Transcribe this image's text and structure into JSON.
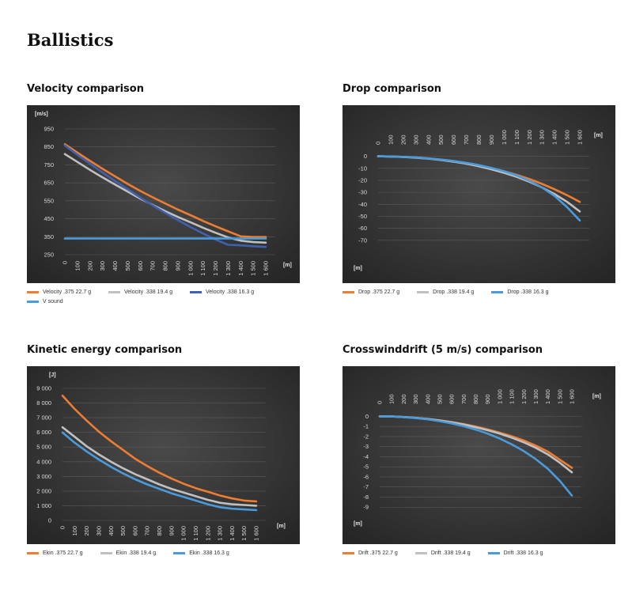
{
  "page": {
    "title": "Ballistics"
  },
  "colors": {
    "orange": "#ED7D31",
    "gray": "#C0C0C0",
    "navy": "#4060B0",
    "blue": "#4A9BDC",
    "bg": "#333333"
  },
  "chart_data": [
    {
      "id": "velocity",
      "type": "line",
      "title": "Velocity comparison",
      "x_unit": "[m]",
      "y_unit": "[m/s]",
      "x": [
        0,
        100,
        200,
        300,
        400,
        500,
        600,
        700,
        800,
        900,
        1000,
        1100,
        1200,
        1300,
        1400,
        1500,
        1600
      ],
      "x_tick_labels": [
        "0",
        "100",
        "200",
        "300",
        "400",
        "500",
        "600",
        "700",
        "800",
        "900",
        "1 000",
        "1 100",
        "1 200",
        "1 300",
        "1 400",
        "1 500",
        "1 600"
      ],
      "y_ticks": [
        250,
        350,
        450,
        550,
        650,
        750,
        850,
        950
      ],
      "y_tick_labels": [
        "250",
        "350",
        "450",
        "550",
        "650",
        "750",
        "850",
        "950"
      ],
      "ylim": [
        250,
        950
      ],
      "grid": true,
      "legend_position": "bottom",
      "legend_columns": 2,
      "series": [
        {
          "name": "Velocity .375 22.7 g",
          "color": "#ED7D31",
          "values": [
            865,
            818,
            772,
            728,
            686,
            644,
            605,
            569,
            535,
            501,
            470,
            438,
            408,
            380,
            352,
            348,
            348
          ]
        },
        {
          "name": "Velocity .338 19.4 g",
          "color": "#C0C0C0",
          "values": [
            810,
            766,
            722,
            680,
            640,
            601,
            562,
            527,
            492,
            460,
            430,
            400,
            372,
            346,
            328,
            320,
            317
          ]
        },
        {
          "name": "Velocity .338 16.3 g",
          "color": "#4060B0",
          "values": [
            858,
            806,
            756,
            708,
            660,
            614,
            568,
            524,
            482,
            442,
            404,
            368,
            334,
            305,
            302,
            297,
            293
          ]
        },
        {
          "name": "V sound",
          "color": "#4A9BDC",
          "values": [
            340,
            340,
            340,
            340,
            340,
            340,
            340,
            340,
            340,
            340,
            340,
            340,
            340,
            340,
            340,
            340,
            340
          ]
        }
      ]
    },
    {
      "id": "drop",
      "type": "line",
      "title": "Drop comparison",
      "x_unit": "[m]",
      "y_unit": "[m]",
      "x": [
        0,
        100,
        200,
        300,
        400,
        500,
        600,
        700,
        800,
        900,
        1000,
        1100,
        1200,
        1300,
        1400,
        1500,
        1600
      ],
      "x_tick_labels": [
        "0",
        "100",
        "200",
        "300",
        "400",
        "500",
        "600",
        "700",
        "800",
        "900",
        "1 000",
        "1 100",
        "1 200",
        "1 300",
        "1 400",
        "1 500",
        "1 600"
      ],
      "y_ticks": [
        0,
        -10,
        -20,
        -30,
        -40,
        -50,
        -60,
        -70
      ],
      "y_tick_labels": [
        "0",
        "-10",
        "-20",
        "-30",
        "-40",
        "-50",
        "-60",
        "-70"
      ],
      "ylim": [
        -80,
        5
      ],
      "grid": true,
      "x_axis_position": "top",
      "legend_position": "bottom",
      "legend_columns": 3,
      "series": [
        {
          "name": "Drop .375 22.7 g",
          "color": "#ED7D31",
          "values": [
            0,
            -0.2,
            -0.5,
            -1,
            -1.8,
            -2.8,
            -4,
            -5.6,
            -7.5,
            -9.8,
            -12.5,
            -15.5,
            -19,
            -23,
            -27.5,
            -32.5,
            -38
          ]
        },
        {
          "name": "Drop .338 19.4 g",
          "color": "#C0C0C0",
          "values": [
            0,
            -0.2,
            -0.6,
            -1.2,
            -2,
            -3.1,
            -4.5,
            -6.2,
            -8.3,
            -10.9,
            -13.8,
            -17.2,
            -21.2,
            -26,
            -31.5,
            -38,
            -46
          ]
        },
        {
          "name": "Drop .338 16.3 g",
          "color": "#4A9BDC",
          "values": [
            0,
            -0.2,
            -0.5,
            -1,
            -1.8,
            -2.8,
            -4,
            -5.5,
            -7.4,
            -9.7,
            -12.5,
            -16,
            -20.5,
            -26,
            -33,
            -42.5,
            -53.5
          ]
        }
      ]
    },
    {
      "id": "energy",
      "type": "line",
      "title": "Kinetic energy comparison",
      "x_unit": "[m]",
      "y_unit": "[J]",
      "x": [
        0,
        100,
        200,
        300,
        400,
        500,
        600,
        700,
        800,
        900,
        1000,
        1100,
        1200,
        1300,
        1400,
        1500,
        1600
      ],
      "x_tick_labels": [
        "0",
        "100",
        "200",
        "300",
        "400",
        "500",
        "600",
        "700",
        "800",
        "900",
        "1 000",
        "1 100",
        "1 200",
        "1 300",
        "1 400",
        "1 500",
        "1 600"
      ],
      "y_ticks": [
        0,
        1000,
        2000,
        3000,
        4000,
        5000,
        6000,
        7000,
        8000,
        9000
      ],
      "y_tick_labels": [
        "0",
        "1 000",
        "2 000",
        "3 000",
        "4 000",
        "5 000",
        "6 000",
        "7 000",
        "8 000",
        "9 000"
      ],
      "ylim": [
        0,
        9000
      ],
      "grid": true,
      "legend_position": "bottom",
      "legend_columns": 3,
      "series": [
        {
          "name": "Ekin .375 22.7 g",
          "color": "#ED7D31",
          "values": [
            8500,
            7600,
            6800,
            6050,
            5400,
            4800,
            4200,
            3700,
            3250,
            2850,
            2500,
            2200,
            1950,
            1700,
            1500,
            1350,
            1300
          ]
        },
        {
          "name": "Ekin .338 19.4 g",
          "color": "#C0C0C0",
          "values": [
            6350,
            5700,
            5050,
            4500,
            4000,
            3550,
            3150,
            2800,
            2450,
            2150,
            1900,
            1650,
            1400,
            1200,
            1100,
            1050,
            1000
          ]
        },
        {
          "name": "Ekin .338 16.3 g",
          "color": "#4A9BDC",
          "values": [
            6000,
            5300,
            4700,
            4150,
            3650,
            3200,
            2800,
            2450,
            2150,
            1850,
            1600,
            1350,
            1100,
            900,
            800,
            750,
            700
          ]
        }
      ]
    },
    {
      "id": "drift",
      "type": "line",
      "title": "Crosswinddrift (5 m/s) comparison",
      "x_unit": "[m]",
      "y_unit": "[m]",
      "x": [
        0,
        100,
        200,
        300,
        400,
        500,
        600,
        700,
        800,
        900,
        1000,
        1100,
        1200,
        1300,
        1400,
        1500,
        1600
      ],
      "x_tick_labels": [
        "0",
        "100",
        "200",
        "300",
        "400",
        "500",
        "600",
        "700",
        "800",
        "900",
        "1 000",
        "1 100",
        "1 200",
        "1 300",
        "1 400",
        "1 500",
        "1 600"
      ],
      "y_ticks": [
        0,
        -1,
        -2,
        -3,
        -4,
        -5,
        -6,
        -7,
        -8,
        -9
      ],
      "y_tick_labels": [
        "0",
        "-1",
        "-2",
        "-3",
        "-4",
        "-5",
        "-6",
        "-7",
        "-8",
        "-9"
      ],
      "ylim": [
        -10,
        0.5
      ],
      "grid": true,
      "x_axis_position": "top",
      "legend_position": "bottom",
      "legend_columns": 3,
      "series": [
        {
          "name": "Drift .375 22.7 g",
          "color": "#ED7D31",
          "values": [
            0,
            -0.02,
            -0.07,
            -0.15,
            -0.26,
            -0.4,
            -0.57,
            -0.78,
            -1.02,
            -1.3,
            -1.62,
            -1.98,
            -2.4,
            -2.9,
            -3.5,
            -4.3,
            -5.1
          ]
        },
        {
          "name": "Drift .338 19.4 g",
          "color": "#C0C0C0",
          "values": [
            0,
            -0.02,
            -0.07,
            -0.15,
            -0.27,
            -0.42,
            -0.6,
            -0.82,
            -1.08,
            -1.38,
            -1.72,
            -2.12,
            -2.58,
            -3.12,
            -3.78,
            -4.6,
            -5.55
          ]
        },
        {
          "name": "Drift .338 16.3 g",
          "color": "#4A9BDC",
          "values": [
            0,
            -0.02,
            -0.08,
            -0.17,
            -0.3,
            -0.48,
            -0.7,
            -0.98,
            -1.32,
            -1.72,
            -2.2,
            -2.78,
            -3.45,
            -4.25,
            -5.2,
            -6.4,
            -7.85
          ]
        }
      ]
    }
  ]
}
